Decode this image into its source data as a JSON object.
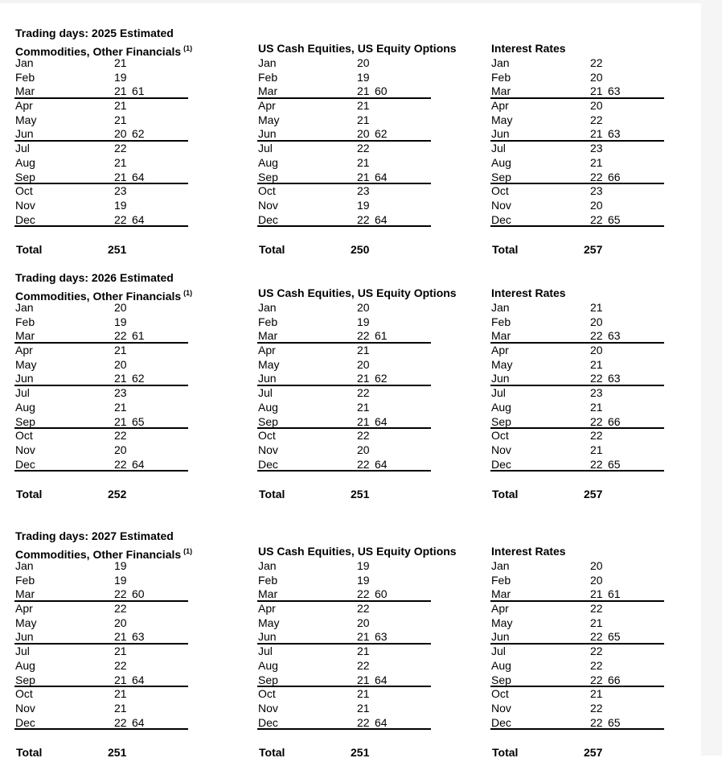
{
  "footnote_marker": "(1)",
  "total_label": "Total",
  "sections": [
    {
      "title": "Trading days: 2025 Estimated",
      "columns": [
        {
          "header": "Commodities, Other Financials",
          "footnote": "(1)",
          "rows": [
            {
              "month": "Jan",
              "value": "21"
            },
            {
              "month": "Feb",
              "value": "19"
            },
            {
              "month": "Mar",
              "value": "21",
              "quarter_total": "61"
            },
            {
              "month": "Apr",
              "value": "21"
            },
            {
              "month": "May",
              "value": "21"
            },
            {
              "month": "Jun",
              "value": "20",
              "quarter_total": "62"
            },
            {
              "month": "Jul",
              "value": "22"
            },
            {
              "month": "Aug",
              "value": "21"
            },
            {
              "month": "Sep",
              "value": "21",
              "quarter_total": "64"
            },
            {
              "month": "Oct",
              "value": "23"
            },
            {
              "month": "Nov",
              "value": "19"
            },
            {
              "month": "Dec",
              "value": "22",
              "quarter_total": "64"
            }
          ],
          "total": "251"
        },
        {
          "header": "US Cash Equities, US Equity Options",
          "rows": [
            {
              "month": "Jan",
              "value": "20"
            },
            {
              "month": "Feb",
              "value": "19"
            },
            {
              "month": "Mar",
              "value": "21",
              "quarter_total": "60"
            },
            {
              "month": "Apr",
              "value": "21"
            },
            {
              "month": "May",
              "value": "21"
            },
            {
              "month": "Jun",
              "value": "20",
              "quarter_total": "62"
            },
            {
              "month": "Jul",
              "value": "22"
            },
            {
              "month": "Aug",
              "value": "21"
            },
            {
              "month": "Sep",
              "value": "21",
              "quarter_total": "64"
            },
            {
              "month": "Oct",
              "value": "23"
            },
            {
              "month": "Nov",
              "value": "19"
            },
            {
              "month": "Dec",
              "value": "22",
              "quarter_total": "64"
            }
          ],
          "total": "250"
        },
        {
          "header": "Interest Rates",
          "rows": [
            {
              "month": "Jan",
              "value": "22"
            },
            {
              "month": "Feb",
              "value": "20"
            },
            {
              "month": "Mar",
              "value": "21",
              "quarter_total": "63"
            },
            {
              "month": "Apr",
              "value": "20"
            },
            {
              "month": "May",
              "value": "22"
            },
            {
              "month": "Jun",
              "value": "21",
              "quarter_total": "63"
            },
            {
              "month": "Jul",
              "value": "23"
            },
            {
              "month": "Aug",
              "value": "21"
            },
            {
              "month": "Sep",
              "value": "22",
              "quarter_total": "66"
            },
            {
              "month": "Oct",
              "value": "23"
            },
            {
              "month": "Nov",
              "value": "20"
            },
            {
              "month": "Dec",
              "value": "22",
              "quarter_total": "65"
            }
          ],
          "total": "257"
        }
      ]
    },
    {
      "title": "Trading days: 2026 Estimated",
      "columns": [
        {
          "header": "Commodities, Other Financials",
          "footnote": "(1)",
          "rows": [
            {
              "month": "Jan",
              "value": "20"
            },
            {
              "month": "Feb",
              "value": "19"
            },
            {
              "month": "Mar",
              "value": "22",
              "quarter_total": "61"
            },
            {
              "month": "Apr",
              "value": "21"
            },
            {
              "month": "May",
              "value": "20"
            },
            {
              "month": "Jun",
              "value": "21",
              "quarter_total": "62"
            },
            {
              "month": "Jul",
              "value": "23"
            },
            {
              "month": "Aug",
              "value": "21"
            },
            {
              "month": "Sep",
              "value": "21",
              "quarter_total": "65"
            },
            {
              "month": "Oct",
              "value": "22"
            },
            {
              "month": "Nov",
              "value": "20"
            },
            {
              "month": "Dec",
              "value": "22",
              "quarter_total": "64"
            }
          ],
          "total": "252"
        },
        {
          "header": "US Cash Equities, US Equity Options",
          "rows": [
            {
              "month": "Jan",
              "value": "20"
            },
            {
              "month": "Feb",
              "value": "19"
            },
            {
              "month": "Mar",
              "value": "22",
              "quarter_total": "61"
            },
            {
              "month": "Apr",
              "value": "21"
            },
            {
              "month": "May",
              "value": "20"
            },
            {
              "month": "Jun",
              "value": "21",
              "quarter_total": "62"
            },
            {
              "month": "Jul",
              "value": "22"
            },
            {
              "month": "Aug",
              "value": "21"
            },
            {
              "month": "Sep",
              "value": "21",
              "quarter_total": "64"
            },
            {
              "month": "Oct",
              "value": "22"
            },
            {
              "month": "Nov",
              "value": "20"
            },
            {
              "month": "Dec",
              "value": "22",
              "quarter_total": "64"
            }
          ],
          "total": "251"
        },
        {
          "header": "Interest Rates",
          "rows": [
            {
              "month": "Jan",
              "value": "21"
            },
            {
              "month": "Feb",
              "value": "20"
            },
            {
              "month": "Mar",
              "value": "22",
              "quarter_total": "63"
            },
            {
              "month": "Apr",
              "value": "20"
            },
            {
              "month": "May",
              "value": "21"
            },
            {
              "month": "Jun",
              "value": "22",
              "quarter_total": "63"
            },
            {
              "month": "Jul",
              "value": "23"
            },
            {
              "month": "Aug",
              "value": "21"
            },
            {
              "month": "Sep",
              "value": "22",
              "quarter_total": "66"
            },
            {
              "month": "Oct",
              "value": "22"
            },
            {
              "month": "Nov",
              "value": "21"
            },
            {
              "month": "Dec",
              "value": "22",
              "quarter_total": "65"
            }
          ],
          "total": "257"
        }
      ]
    },
    {
      "title": "Trading days: 2027 Estimated",
      "columns": [
        {
          "header": "Commodities, Other Financials",
          "footnote": "(1)",
          "rows": [
            {
              "month": "Jan",
              "value": "19"
            },
            {
              "month": "Feb",
              "value": "19"
            },
            {
              "month": "Mar",
              "value": "22",
              "quarter_total": "60"
            },
            {
              "month": "Apr",
              "value": "22"
            },
            {
              "month": "May",
              "value": "20"
            },
            {
              "month": "Jun",
              "value": "21",
              "quarter_total": "63"
            },
            {
              "month": "Jul",
              "value": "21"
            },
            {
              "month": "Aug",
              "value": "22"
            },
            {
              "month": "Sep",
              "value": "21",
              "quarter_total": "64"
            },
            {
              "month": "Oct",
              "value": "21"
            },
            {
              "month": "Nov",
              "value": "21"
            },
            {
              "month": "Dec",
              "value": "22",
              "quarter_total": "64"
            }
          ],
          "total": "251"
        },
        {
          "header": "US Cash Equities, US Equity Options",
          "rows": [
            {
              "month": "Jan",
              "value": "19"
            },
            {
              "month": "Feb",
              "value": "19"
            },
            {
              "month": "Mar",
              "value": "22",
              "quarter_total": "60"
            },
            {
              "month": "Apr",
              "value": "22"
            },
            {
              "month": "May",
              "value": "20"
            },
            {
              "month": "Jun",
              "value": "21",
              "quarter_total": "63"
            },
            {
              "month": "Jul",
              "value": "21"
            },
            {
              "month": "Aug",
              "value": "22"
            },
            {
              "month": "Sep",
              "value": "21",
              "quarter_total": "64"
            },
            {
              "month": "Oct",
              "value": "21"
            },
            {
              "month": "Nov",
              "value": "21"
            },
            {
              "month": "Dec",
              "value": "22",
              "quarter_total": "64"
            }
          ],
          "total": "251"
        },
        {
          "header": "Interest Rates",
          "rows": [
            {
              "month": "Jan",
              "value": "20"
            },
            {
              "month": "Feb",
              "value": "20"
            },
            {
              "month": "Mar",
              "value": "21",
              "quarter_total": "61"
            },
            {
              "month": "Apr",
              "value": "22"
            },
            {
              "month": "May",
              "value": "21"
            },
            {
              "month": "Jun",
              "value": "22",
              "quarter_total": "65"
            },
            {
              "month": "Jul",
              "value": "22"
            },
            {
              "month": "Aug",
              "value": "22"
            },
            {
              "month": "Sep",
              "value": "22",
              "quarter_total": "66"
            },
            {
              "month": "Oct",
              "value": "21"
            },
            {
              "month": "Nov",
              "value": "22"
            },
            {
              "month": "Dec",
              "value": "22",
              "quarter_total": "65"
            }
          ],
          "total": "257"
        }
      ]
    }
  ]
}
